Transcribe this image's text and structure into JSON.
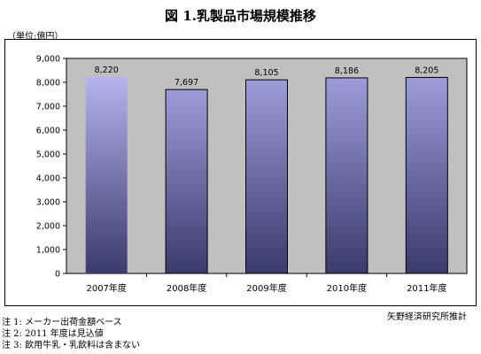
{
  "notes": [
    "注 1:  メーカー出荷金額ベース",
    "注 2: 2011 年度は見込値",
    "注 3:  飲用牛乳・乳飲料は含まない"
  ],
  "source": "矢野経済研究所推計",
  "chart_data": {
    "type": "bar",
    "title": "図 1.乳製品市場規模推移",
    "unit_label": "（単位:億円）",
    "categories": [
      "2007年度",
      "2008年度",
      "2009年度",
      "2010年度",
      "2011年度"
    ],
    "values": [
      8220,
      7697,
      8105,
      8186,
      8205
    ],
    "value_labels": [
      "8,220",
      "7,697",
      "8,105",
      "8,186",
      "8,205"
    ],
    "ylim": [
      0,
      9000
    ],
    "yticks": [
      0,
      1000,
      2000,
      3000,
      4000,
      5000,
      6000,
      7000,
      8000,
      9000
    ],
    "ytick_labels": [
      "0",
      "1,000",
      "2,000",
      "3,000",
      "4,000",
      "5,000",
      "6,000",
      "7,000",
      "8,000",
      "9,000"
    ],
    "grid": false,
    "legend": "none",
    "colors": {
      "plot_bg": "#c0c0c0",
      "bar_top": "#9c9cda",
      "bar_bottom": "#3a3a6c",
      "bar_highlight_top": "#b4b4ee",
      "bar_border": "#000000"
    }
  }
}
